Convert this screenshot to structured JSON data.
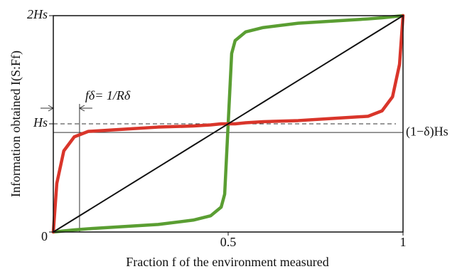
{
  "chart_data": {
    "type": "line",
    "xlabel": "Fraction f of the environment measured",
    "ylabel": "Information obtained I(S:Ff)",
    "x": [
      0,
      0.01,
      0.03,
      0.06,
      0.1,
      0.2,
      0.3,
      0.4,
      0.45,
      0.48,
      0.49,
      0.5,
      0.51,
      0.52,
      0.55,
      0.6,
      0.7,
      0.8,
      0.9,
      0.94,
      0.97,
      0.99,
      1
    ],
    "series": [
      {
        "color": "#5a9e32",
        "values": [
          0,
          0.003,
          0.01,
          0.02,
          0.03,
          0.05,
          0.07,
          0.11,
          0.15,
          0.23,
          0.35,
          1,
          1.65,
          1.77,
          1.85,
          1.89,
          1.93,
          1.95,
          1.97,
          1.98,
          1.99,
          1.997,
          2
        ]
      },
      {
        "color": "#d9352a",
        "values": [
          0,
          0.45,
          0.75,
          0.88,
          0.93,
          0.95,
          0.97,
          0.98,
          0.99,
          1,
          1,
          1,
          1,
          1,
          1.01,
          1.02,
          1.03,
          1.05,
          1.07,
          1.12,
          1.25,
          1.55,
          2
        ]
      },
      {
        "color": "#111111",
        "values": [
          0,
          0.02,
          0.06,
          0.12,
          0.2,
          0.4,
          0.6,
          0.8,
          0.9,
          0.96,
          0.98,
          1,
          1.02,
          1.04,
          1.1,
          1.2,
          1.4,
          1.6,
          1.8,
          1.88,
          1.94,
          1.98,
          2
        ]
      }
    ],
    "xlim": [
      0,
      1
    ],
    "ylim": [
      0,
      2
    ],
    "xticks": [
      0.5,
      1
    ],
    "yticks": [
      {
        "value": 0,
        "label": "0"
      },
      {
        "value": 1,
        "label": "Hs"
      },
      {
        "value": 2,
        "label": "2Hs"
      }
    ],
    "threshold": 0.92,
    "threshold_label": "(1−δ)Hs",
    "f_delta": 0.075,
    "f_delta_label": "fδ= 1/Rδ"
  }
}
